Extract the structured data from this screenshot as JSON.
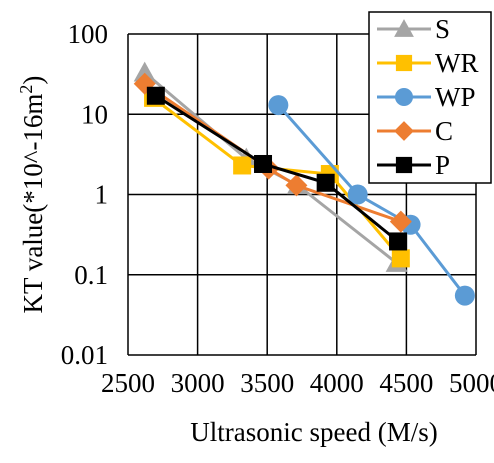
{
  "chart_data": {
    "type": "line",
    "xlabel": "Ultrasonic speed (M/s)",
    "ylabel": "KT value(*10^-16m²)",
    "ylabel_parts": {
      "main": "KT value(*10^-16m",
      "sup": "2",
      "close": ")"
    },
    "xlim": [
      2500,
      5000
    ],
    "ylim": [
      0.01,
      100
    ],
    "y_scale": "log",
    "grid": true,
    "legend_position": "top-right",
    "x_ticks": [
      2500,
      3000,
      3500,
      4000,
      4500,
      5000
    ],
    "x_tick_labels": [
      "2500",
      "3000",
      "3500",
      "4000",
      "4500",
      "5000"
    ],
    "y_ticks": [
      0.01,
      0.1,
      1,
      10,
      100
    ],
    "y_tick_labels": [
      "0.01",
      "0.1",
      "1",
      "10",
      "100"
    ],
    "series": [
      {
        "name": "S",
        "color": "#a5a5a5",
        "marker": "triangle",
        "points": [
          [
            2620,
            33
          ],
          [
            3350,
            2.8
          ],
          [
            3720,
            1.3
          ],
          [
            4430,
            0.14
          ]
        ]
      },
      {
        "name": "WR",
        "color": "#ffc000",
        "marker": "square",
        "points": [
          [
            2680,
            16
          ],
          [
            3320,
            2.3
          ],
          [
            3950,
            1.8
          ],
          [
            4460,
            0.16
          ]
        ]
      },
      {
        "name": "WP",
        "color": "#5b9bd5",
        "marker": "circle",
        "points": [
          [
            3580,
            13
          ],
          [
            4150,
            1.0
          ],
          [
            4530,
            0.42
          ],
          [
            4920,
            0.055
          ]
        ]
      },
      {
        "name": "C",
        "color": "#ed7d31",
        "marker": "diamond",
        "points": [
          [
            2620,
            24
          ],
          [
            3510,
            2.1
          ],
          [
            3710,
            1.3
          ],
          [
            4460,
            0.46
          ]
        ]
      },
      {
        "name": "P",
        "color": "#000000",
        "marker": "square",
        "points": [
          [
            2700,
            17
          ],
          [
            3470,
            2.4
          ],
          [
            3920,
            1.4
          ],
          [
            4440,
            0.26
          ]
        ]
      }
    ]
  }
}
